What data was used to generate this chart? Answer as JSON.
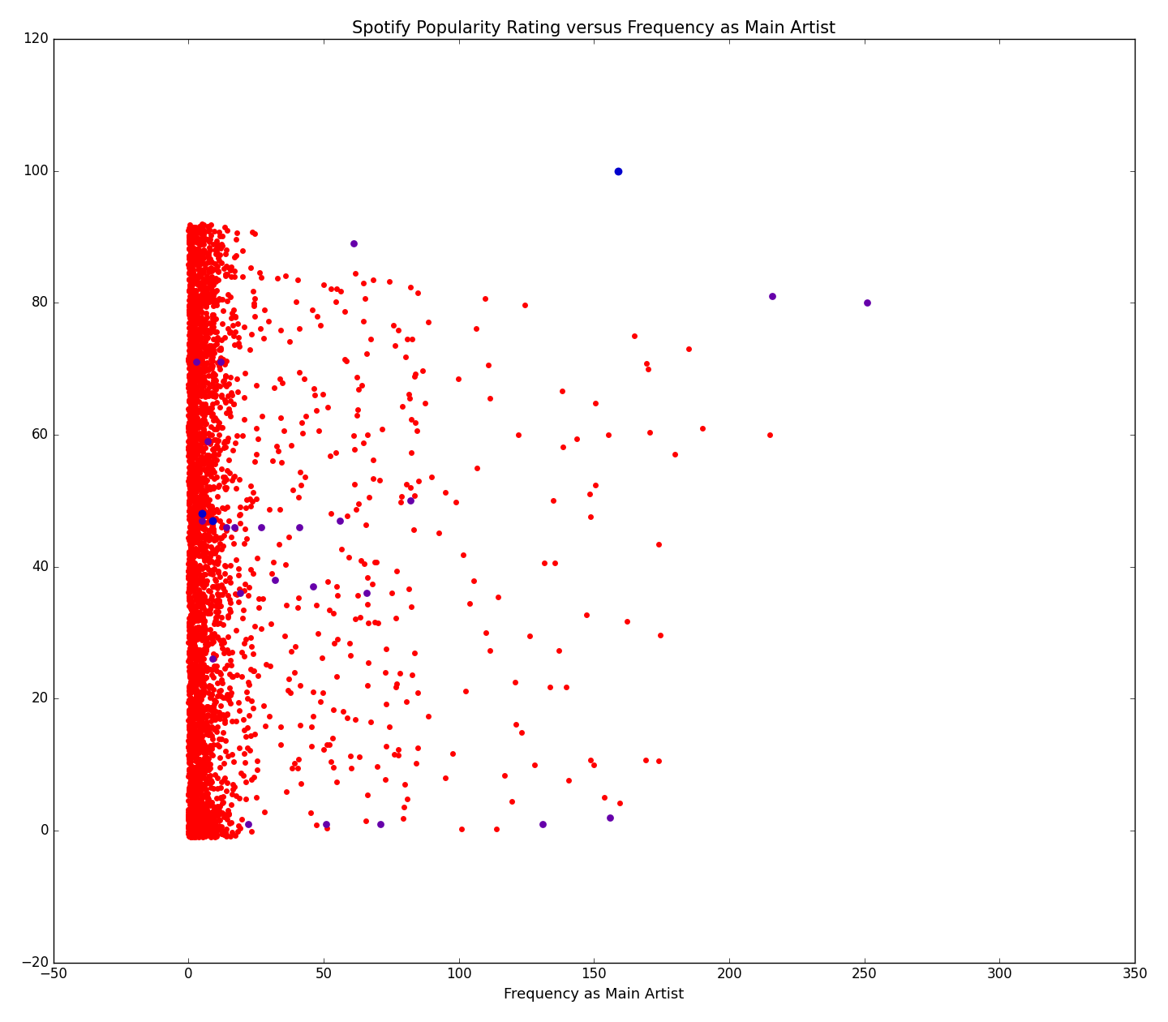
{
  "title": "Spotify Popularity Rating versus Frequency as Main Artist",
  "xlabel": "Frequency as Main Artist",
  "xlim": [
    -50,
    350
  ],
  "ylim": [
    -20,
    120
  ],
  "xticks": [
    -50,
    0,
    50,
    100,
    150,
    200,
    250,
    300,
    350
  ],
  "yticks": [
    -20,
    0,
    20,
    40,
    60,
    80,
    100,
    120
  ],
  "red_color": "#ff0000",
  "blue_color": "#0000cd",
  "purple_color": "#6600aa",
  "figsize": [
    14.4,
    12.6
  ],
  "dpi": 100,
  "seed": 12345,
  "red_marker_size": 25,
  "purple_marker_size": 40,
  "blue_marker_size": 50,
  "purple_x": [
    3,
    5,
    7,
    9,
    12,
    14,
    17,
    19,
    22,
    27,
    32,
    41,
    46,
    51,
    56,
    61,
    66,
    71,
    82,
    131,
    156,
    216,
    251
  ],
  "purple_y": [
    71,
    47,
    59,
    26,
    71,
    46,
    46,
    36,
    1,
    46,
    38,
    46,
    37,
    1,
    47,
    89,
    36,
    1,
    50,
    1,
    2,
    81,
    80
  ],
  "blue_x": [
    5,
    9,
    159
  ],
  "blue_y": [
    48,
    47,
    100
  ]
}
